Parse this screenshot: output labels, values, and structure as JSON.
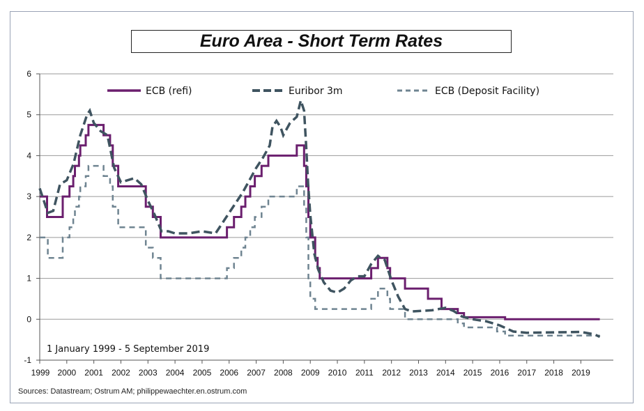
{
  "title": "Euro Area - Short Term Rates",
  "sources": "Sources: Datastream; Ostrum AM; philippewaechter.en.ostrum.com",
  "date_range": "1 January 1999 - 5 September 2019",
  "colors": {
    "refi": "#6b1f6e",
    "euribor": "#3f5460",
    "deposit": "#6f8491",
    "grid": "#9a9a9a",
    "axis": "#555555"
  },
  "chart_data": {
    "type": "line",
    "title": "Euro Area - Short Term Rates",
    "xlabel": "",
    "ylabel": "",
    "xlim": [
      1999,
      2020.2
    ],
    "ylim": [
      -1,
      6
    ],
    "yticks": [
      6,
      5,
      4,
      3,
      2,
      1,
      0,
      -1
    ],
    "xticks": [
      "1999",
      "2000",
      "2001",
      "2002",
      "2003",
      "2004",
      "2005",
      "2006",
      "2007",
      "2008",
      "2009",
      "2010",
      "2011",
      "2012",
      "2013",
      "2014",
      "2015",
      "2016",
      "2017",
      "2018",
      "2019"
    ],
    "grid": true,
    "legend_position": "top",
    "series": [
      {
        "name": "ECB (refi)",
        "style": "solid",
        "step": true,
        "x": [
          1999.0,
          1999.27,
          1999.85,
          2000.1,
          2000.24,
          2000.3,
          2000.45,
          2000.5,
          2000.7,
          2000.8,
          2001.36,
          2001.6,
          2001.7,
          2001.9,
          2002.92,
          2003.18,
          2003.47,
          2005.92,
          2006.18,
          2006.45,
          2006.6,
          2006.78,
          2006.95,
          2007.2,
          2007.45,
          2008.5,
          2008.77,
          2008.85,
          2008.93,
          2009.0,
          2009.18,
          2009.27,
          2009.35,
          2011.25,
          2011.5,
          2011.85,
          2011.95,
          2012.5,
          2013.35,
          2013.85,
          2014.45,
          2014.68,
          2016.2,
          2019.7
        ],
        "y": [
          3.0,
          2.5,
          3.0,
          3.25,
          3.5,
          3.75,
          4.0,
          4.25,
          4.5,
          4.75,
          4.5,
          4.25,
          3.75,
          3.25,
          2.75,
          2.5,
          2.0,
          2.25,
          2.5,
          2.75,
          3.0,
          3.25,
          3.5,
          3.75,
          4.0,
          4.25,
          3.75,
          3.25,
          2.5,
          2.0,
          1.5,
          1.25,
          1.0,
          1.25,
          1.5,
          1.25,
          1.0,
          0.75,
          0.5,
          0.25,
          0.15,
          0.05,
          0.0,
          0.0
        ]
      },
      {
        "name": "Euribor 3m",
        "style": "dash",
        "step": false,
        "x": [
          1999.0,
          1999.1,
          1999.3,
          1999.5,
          1999.75,
          2000.0,
          2000.25,
          2000.5,
          2000.75,
          2000.85,
          2001.0,
          2001.25,
          2001.5,
          2001.75,
          2002.0,
          2002.25,
          2002.5,
          2002.75,
          2003.0,
          2003.25,
          2003.5,
          2003.75,
          2004.0,
          2004.5,
          2005.0,
          2005.5,
          2005.85,
          2006.0,
          2006.25,
          2006.5,
          2006.75,
          2007.0,
          2007.25,
          2007.5,
          2007.6,
          2007.75,
          2007.9,
          2008.0,
          2008.25,
          2008.5,
          2008.65,
          2008.77,
          2008.85,
          2008.92,
          2009.0,
          2009.15,
          2009.3,
          2009.5,
          2009.75,
          2010.0,
          2010.25,
          2010.5,
          2010.75,
          2011.0,
          2011.25,
          2011.5,
          2011.6,
          2011.75,
          2012.0,
          2012.25,
          2012.5,
          2012.75,
          2013.0,
          2013.5,
          2014.0,
          2014.3,
          2014.6,
          2015.0,
          2015.5,
          2016.0,
          2016.5,
          2017.0,
          2018.0,
          2019.0,
          2019.5,
          2019.7
        ],
        "y": [
          3.2,
          3.0,
          2.6,
          2.65,
          3.3,
          3.4,
          3.8,
          4.5,
          5.0,
          5.1,
          4.8,
          4.6,
          4.5,
          3.7,
          3.35,
          3.4,
          3.45,
          3.3,
          2.9,
          2.55,
          2.15,
          2.15,
          2.1,
          2.1,
          2.15,
          2.1,
          2.45,
          2.6,
          2.85,
          3.1,
          3.4,
          3.7,
          3.95,
          4.25,
          4.7,
          4.85,
          4.7,
          4.5,
          4.8,
          4.95,
          5.35,
          5.1,
          4.2,
          3.3,
          2.55,
          1.6,
          1.2,
          0.9,
          0.7,
          0.65,
          0.75,
          0.95,
          1.05,
          1.05,
          1.35,
          1.55,
          1.5,
          1.45,
          0.95,
          0.55,
          0.25,
          0.19,
          0.2,
          0.22,
          0.28,
          0.2,
          0.07,
          0.0,
          -0.05,
          -0.15,
          -0.3,
          -0.33,
          -0.32,
          -0.31,
          -0.37,
          -0.43
        ]
      },
      {
        "name": "ECB (Deposit Facility)",
        "style": "dash",
        "step": true,
        "x": [
          1999.0,
          1999.3,
          1999.85,
          2000.1,
          2000.24,
          2000.3,
          2000.45,
          2000.5,
          2000.7,
          2000.8,
          2001.36,
          2001.6,
          2001.7,
          2001.9,
          2002.92,
          2003.18,
          2003.47,
          2005.92,
          2006.18,
          2006.45,
          2006.6,
          2006.78,
          2006.95,
          2007.2,
          2007.45,
          2008.5,
          2008.77,
          2008.85,
          2008.93,
          2009.0,
          2009.18,
          2009.27,
          2011.25,
          2011.5,
          2011.85,
          2011.95,
          2012.5,
          2014.45,
          2014.68,
          2015.9,
          2016.2,
          2019.7
        ],
        "y": [
          2.0,
          1.5,
          2.0,
          2.25,
          2.5,
          2.75,
          3.0,
          3.25,
          3.5,
          3.75,
          3.5,
          3.25,
          2.75,
          2.25,
          1.75,
          1.5,
          1.0,
          1.25,
          1.5,
          1.75,
          2.0,
          2.25,
          2.5,
          2.75,
          3.0,
          3.25,
          2.75,
          2.0,
          1.0,
          0.5,
          0.25,
          0.25,
          0.5,
          0.75,
          0.5,
          0.25,
          0.0,
          -0.1,
          -0.2,
          -0.3,
          -0.4,
          -0.4
        ]
      }
    ]
  }
}
